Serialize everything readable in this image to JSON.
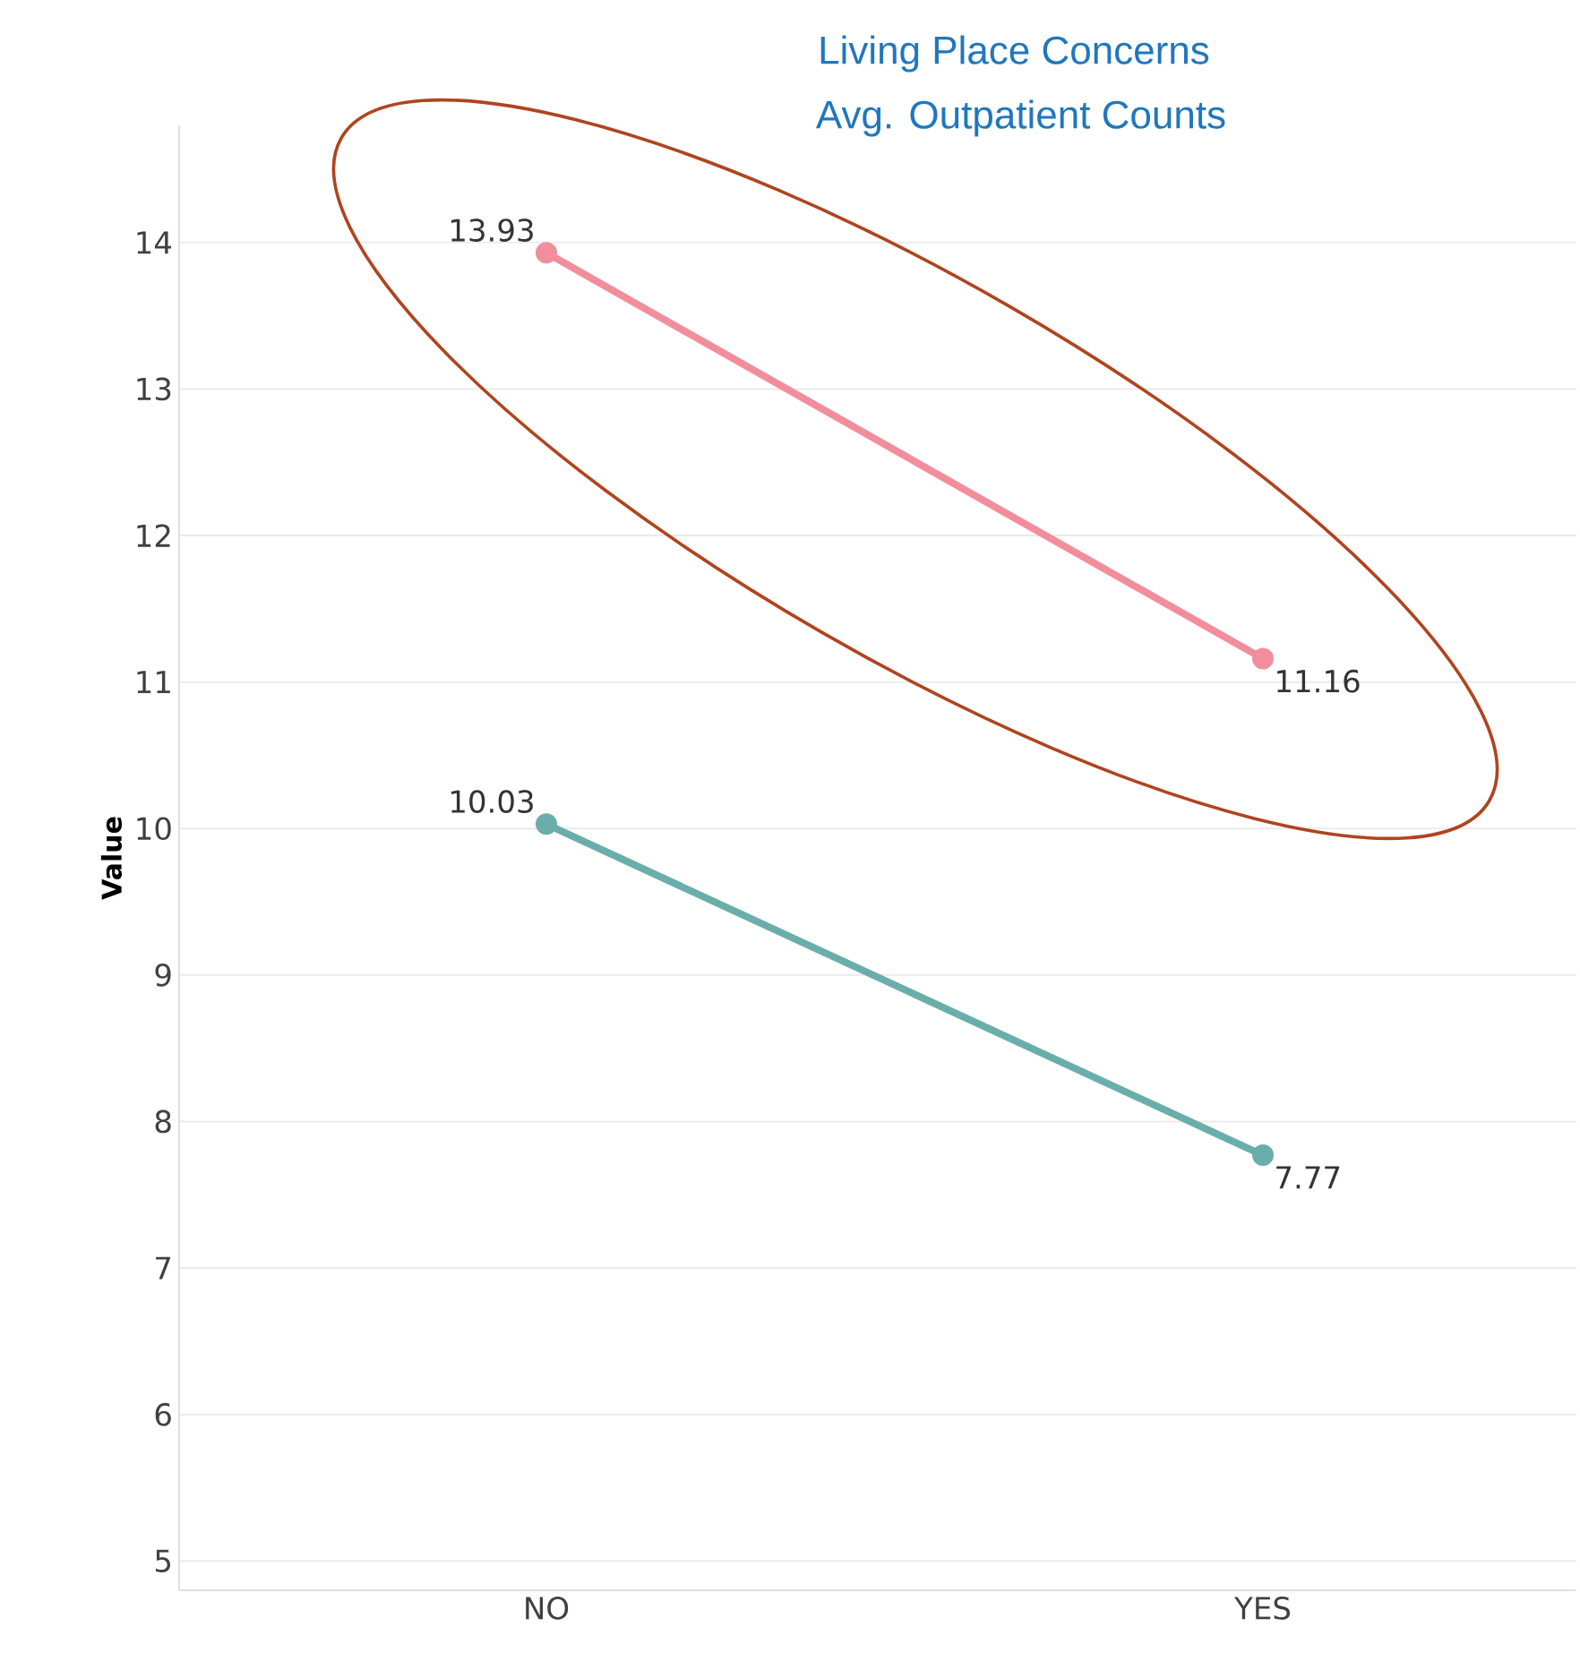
{
  "chart_data": {
    "type": "line",
    "title": "Living Place Concerns",
    "subtitle": "Avg. Outpatient Counts",
    "ylabel": "Value",
    "categories": [
      "NO",
      "YES"
    ],
    "series": [
      {
        "color": "#f28e9b",
        "values": [
          13.93,
          11.16
        ]
      },
      {
        "color": "#6aaeaa",
        "values": [
          10.03,
          7.77
        ]
      }
    ],
    "ylim": [
      4.8,
      14.8
    ],
    "yticks": [
      5,
      6,
      7,
      8,
      9,
      10,
      11,
      12,
      13,
      14
    ],
    "grid": "y",
    "data_labels": true,
    "marker": "circle",
    "line_style": "solid"
  }
}
